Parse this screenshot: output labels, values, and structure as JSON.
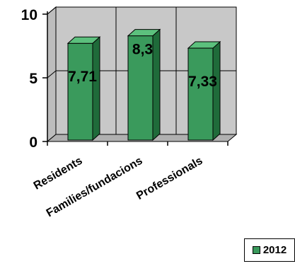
{
  "chart_data": {
    "type": "bar",
    "categories": [
      "Residents",
      "Families/fundacions",
      "Professionals"
    ],
    "series": [
      {
        "name": "2012",
        "values": [
          7.71,
          8.3,
          7.33
        ],
        "color": "#3a9a5c"
      }
    ],
    "data_labels": [
      "7,71",
      "8,3",
      "7,33"
    ],
    "ylim": [
      0,
      10
    ],
    "yticks": [
      0,
      5,
      10
    ],
    "ytick_labels": [
      "0",
      "5",
      "10"
    ],
    "grid": true,
    "legend_position": "bottom-right",
    "style": "3d-column",
    "colors": {
      "bar_front": "#3a9a5c",
      "bar_side": "#1f6b3a",
      "bar_top": "#5cc07d",
      "plot_back": "#c8c8c8",
      "plot_floor": "#b0b0b0"
    }
  }
}
